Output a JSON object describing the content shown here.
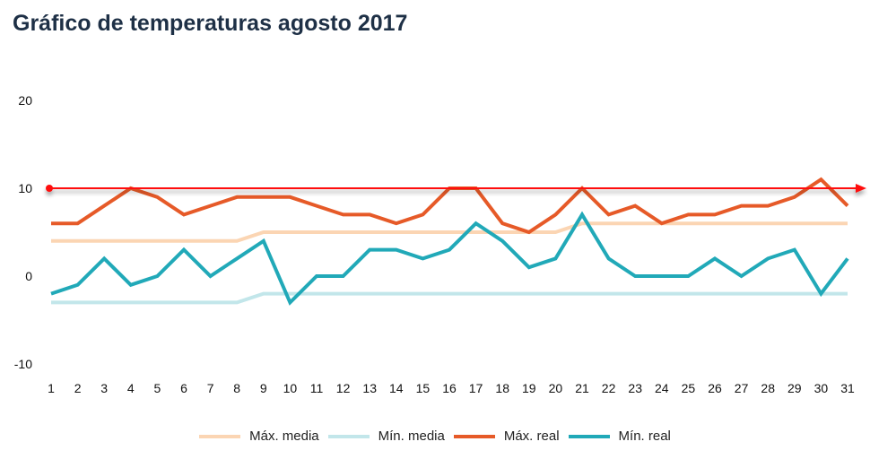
{
  "chart_data": {
    "type": "line",
    "title": "Gráfico de temperaturas agosto 2017",
    "xlabel": "",
    "ylabel": "",
    "x": [
      1,
      2,
      3,
      4,
      5,
      6,
      7,
      8,
      9,
      10,
      11,
      12,
      13,
      14,
      15,
      16,
      17,
      18,
      19,
      20,
      21,
      22,
      23,
      24,
      25,
      26,
      27,
      28,
      29,
      30,
      31
    ],
    "ylim": [
      -10,
      20
    ],
    "yticks": [
      -10,
      0,
      10,
      20
    ],
    "grid": false,
    "legend_position": "bottom",
    "reference_line": {
      "value": 10,
      "color": "#ff1111",
      "style": "arrow"
    },
    "series": [
      {
        "name": "Máx. media",
        "color": "#fbd5b3",
        "values": [
          4,
          4,
          4,
          4,
          4,
          4,
          4,
          4,
          5,
          5,
          5,
          5,
          5,
          5,
          5,
          5,
          5,
          5,
          5,
          5,
          6,
          6,
          6,
          6,
          6,
          6,
          6,
          6,
          6,
          6,
          6
        ]
      },
      {
        "name": "Mín. media",
        "color": "#c2e6ea",
        "values": [
          -3,
          -3,
          -3,
          -3,
          -3,
          -3,
          -3,
          -3,
          -2,
          -2,
          -2,
          -2,
          -2,
          -2,
          -2,
          -2,
          -2,
          -2,
          -2,
          -2,
          -2,
          -2,
          -2,
          -2,
          -2,
          -2,
          -2,
          -2,
          -2,
          -2,
          -2
        ]
      },
      {
        "name": "Máx. real",
        "color": "#e65a28",
        "values": [
          6,
          6,
          8,
          10,
          9,
          7,
          8,
          9,
          9,
          9,
          8,
          7,
          7,
          6,
          7,
          10,
          10,
          6,
          5,
          7,
          10,
          7,
          8,
          6,
          7,
          7,
          8,
          8,
          9,
          11,
          8
        ]
      },
      {
        "name": "Mín. real",
        "color": "#21a9b8",
        "values": [
          -2,
          -1,
          2,
          -1,
          0,
          3,
          0,
          2,
          4,
          -3,
          0,
          0,
          3,
          3,
          2,
          3,
          6,
          4,
          1,
          2,
          7,
          2,
          0,
          0,
          0,
          2,
          0,
          2,
          3,
          -2,
          2
        ]
      }
    ]
  }
}
